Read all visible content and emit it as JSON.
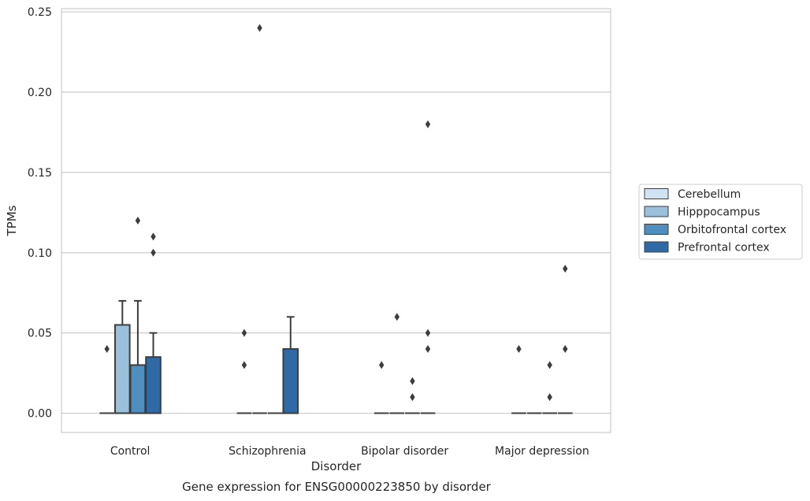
{
  "chart_data": {
    "type": "box",
    "title": "",
    "caption": "Gene expression for ENSG00000223850 by disorder",
    "xlabel": "Disorder",
    "ylabel": "TPMs",
    "ylim": [
      -0.012,
      0.252
    ],
    "yticks": [
      0.0,
      0.05,
      0.1,
      0.15,
      0.2,
      0.25
    ],
    "ytick_labels": [
      "0.00",
      "0.05",
      "0.10",
      "0.15",
      "0.20",
      "0.25"
    ],
    "grid": "horizontal",
    "legend_position": "right",
    "categories": [
      "Control",
      "Schizophrenia",
      "Bipolar disorder",
      "Major depression"
    ],
    "series": [
      {
        "name": "Cerebellum",
        "color": "#d1e2f2",
        "boxes": [
          {
            "q1": 0,
            "median": 0,
            "q3": 0,
            "whisker_low": 0,
            "whisker_high": 0,
            "outliers": [
              0.04
            ]
          },
          {
            "q1": 0,
            "median": 0,
            "q3": 0,
            "whisker_low": 0,
            "whisker_high": 0,
            "outliers": [
              0.03,
              0.05
            ]
          },
          {
            "q1": 0,
            "median": 0,
            "q3": 0,
            "whisker_low": 0,
            "whisker_high": 0,
            "outliers": [
              0.03
            ]
          },
          {
            "q1": 0,
            "median": 0,
            "q3": 0,
            "whisker_low": 0,
            "whisker_high": 0,
            "outliers": [
              0.04
            ]
          }
        ]
      },
      {
        "name": "Hipppocampus",
        "color": "#9ac0db",
        "boxes": [
          {
            "q1": 0,
            "median": 0,
            "q3": 0.055,
            "whisker_low": 0,
            "whisker_high": 0.07,
            "outliers": []
          },
          {
            "q1": 0,
            "median": 0,
            "q3": 0,
            "whisker_low": 0,
            "whisker_high": 0,
            "outliers": [
              0.24
            ]
          },
          {
            "q1": 0,
            "median": 0,
            "q3": 0,
            "whisker_low": 0,
            "whisker_high": 0,
            "outliers": [
              0.06
            ]
          },
          {
            "q1": 0,
            "median": 0,
            "q3": 0,
            "whisker_low": 0,
            "whisker_high": 0,
            "outliers": []
          }
        ]
      },
      {
        "name": "Orbitofrontal cortex",
        "color": "#4e8fbf",
        "boxes": [
          {
            "q1": 0,
            "median": 0,
            "q3": 0.03,
            "whisker_low": 0,
            "whisker_high": 0.07,
            "outliers": [
              0.12
            ]
          },
          {
            "q1": 0,
            "median": 0,
            "q3": 0,
            "whisker_low": 0,
            "whisker_high": 0,
            "outliers": []
          },
          {
            "q1": 0,
            "median": 0,
            "q3": 0,
            "whisker_low": 0,
            "whisker_high": 0,
            "outliers": [
              0.01,
              0.02
            ]
          },
          {
            "q1": 0,
            "median": 0,
            "q3": 0,
            "whisker_low": 0,
            "whisker_high": 0,
            "outliers": [
              0.01,
              0.03
            ]
          }
        ]
      },
      {
        "name": "Prefrontal cortex",
        "color": "#2f69a6",
        "boxes": [
          {
            "q1": 0,
            "median": 0,
            "q3": 0.035,
            "whisker_low": 0,
            "whisker_high": 0.05,
            "outliers": [
              0.1,
              0.11
            ]
          },
          {
            "q1": 0,
            "median": 0,
            "q3": 0.04,
            "whisker_low": 0,
            "whisker_high": 0.06,
            "outliers": []
          },
          {
            "q1": 0,
            "median": 0,
            "q3": 0,
            "whisker_low": 0,
            "whisker_high": 0,
            "outliers": [
              0.04,
              0.05,
              0.18
            ]
          },
          {
            "q1": 0,
            "median": 0,
            "q3": 0,
            "whisker_low": 0,
            "whisker_high": 0,
            "outliers": [
              0.04,
              0.09
            ]
          }
        ]
      }
    ]
  }
}
